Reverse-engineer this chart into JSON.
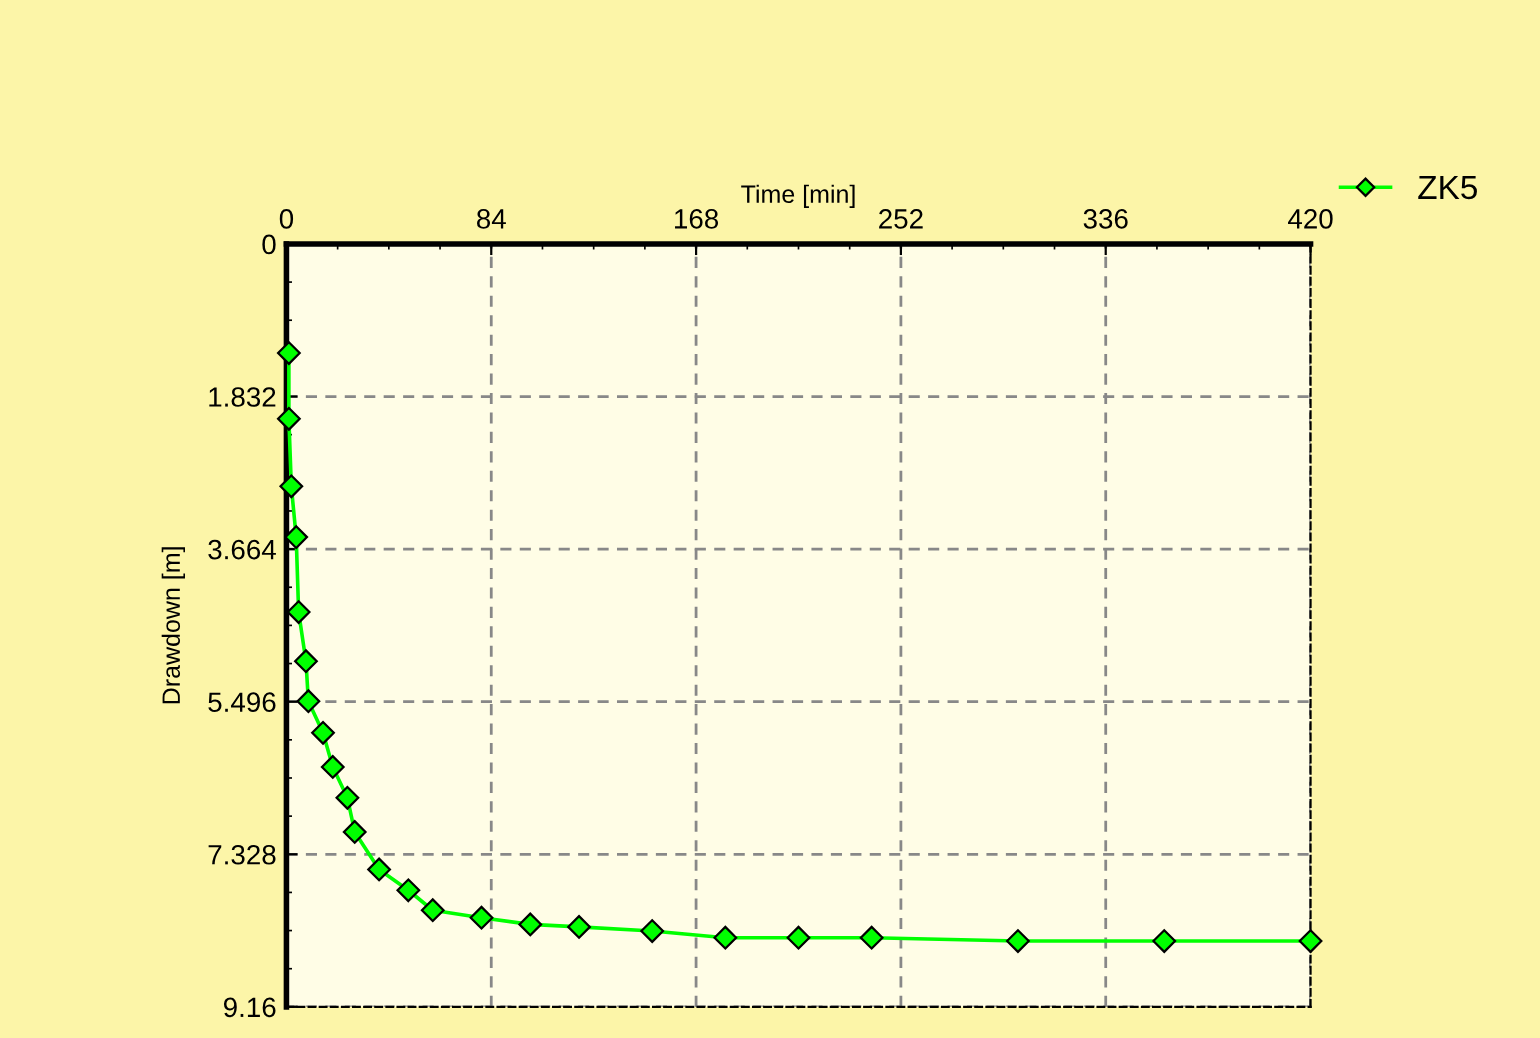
{
  "chart_data": {
    "type": "line",
    "xlabel": "Time [min]",
    "ylabel": "Drawdown [m]",
    "x": [
      1,
      1,
      2,
      4,
      5,
      8,
      9,
      15,
      19,
      25,
      28,
      38,
      50,
      60,
      80,
      100,
      120,
      150,
      180,
      210,
      240,
      300,
      360,
      420
    ],
    "series": [
      {
        "name": "ZK5",
        "color": "#00ff00",
        "values": [
          1.31,
          2.1,
          2.91,
          3.52,
          4.42,
          5.01,
          5.49,
          5.87,
          6.28,
          6.65,
          7.06,
          7.51,
          7.76,
          8.0,
          8.09,
          8.17,
          8.2,
          8.25,
          8.33,
          8.33,
          8.33,
          8.37,
          8.37,
          8.37
        ]
      }
    ],
    "xlim": [
      0,
      420
    ],
    "xticks": [
      0,
      84,
      168,
      252,
      336,
      420
    ],
    "ylim": [
      9.16,
      0
    ],
    "yticks": [
      0,
      1.832,
      3.664,
      5.496,
      7.328,
      9.16
    ],
    "grid": true,
    "legend": "top right",
    "marker": "diamond",
    "line_style": "solid"
  }
}
